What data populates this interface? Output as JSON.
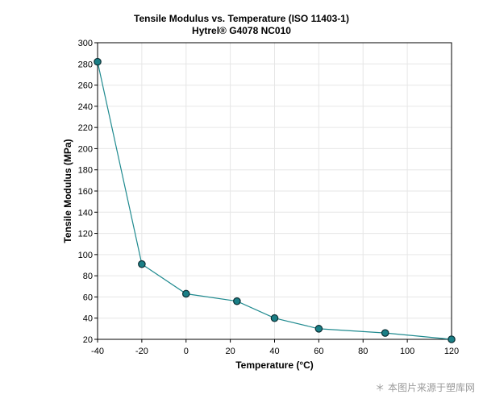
{
  "chart_data": {
    "type": "line",
    "title": "Tensile Modulus vs. Temperature (ISO 11403-1)",
    "subtitle": "Hytrel® G4078 NC010",
    "xlabel": "Temperature (°C)",
    "ylabel": "Tensile Modulus (MPa)",
    "xlim": [
      -40,
      120
    ],
    "ylim": [
      20,
      300
    ],
    "xticks": [
      -40,
      -20,
      0,
      20,
      40,
      60,
      80,
      100,
      120
    ],
    "yticks": [
      20,
      40,
      60,
      80,
      100,
      120,
      140,
      160,
      180,
      200,
      220,
      240,
      260,
      280,
      300
    ],
    "grid": true,
    "series": [
      {
        "x": [
          -40,
          -20,
          0,
          23,
          40,
          60,
          90,
          120
        ],
        "y": [
          282,
          91,
          63,
          56,
          40,
          30,
          26,
          20
        ]
      }
    ],
    "line_color": "#1f8a8f",
    "marker_color": "#1a7f86"
  },
  "watermark": "本图片来源于塑库网"
}
